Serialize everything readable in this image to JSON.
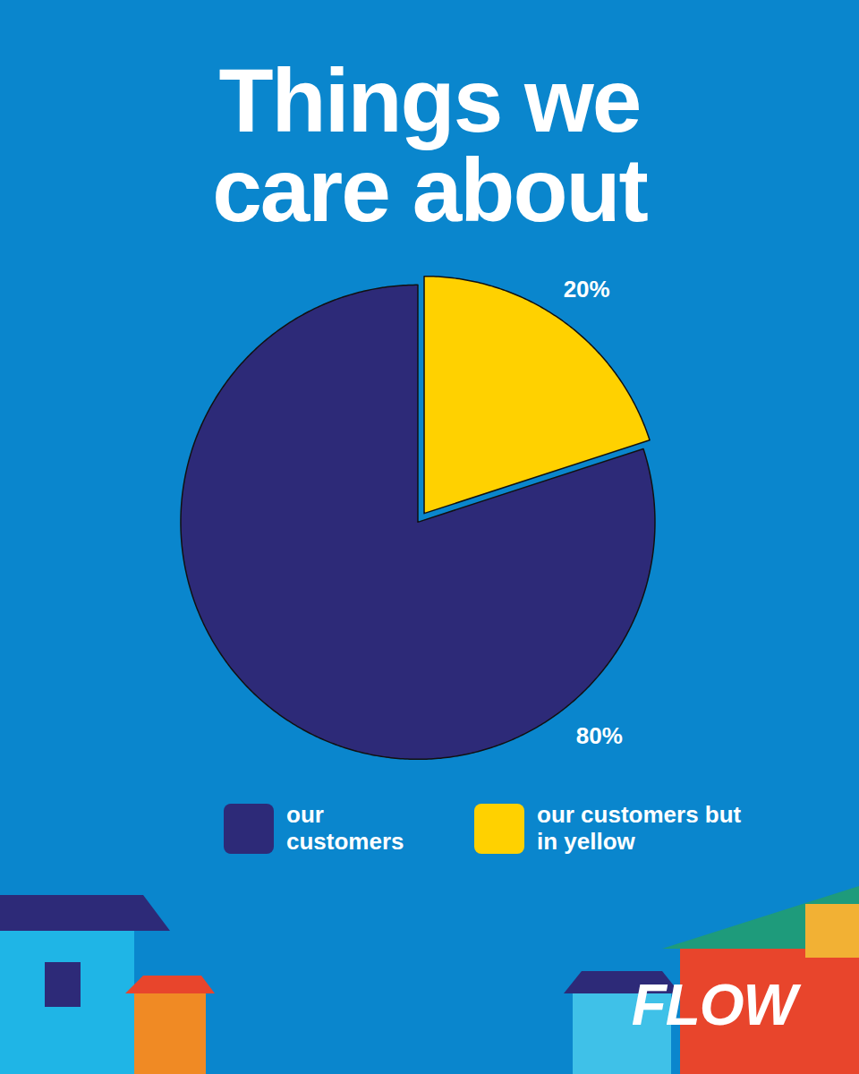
{
  "chart_data": {
    "type": "pie",
    "title": "Things we care about",
    "categories": [
      "our customers",
      "our customers but in yellow"
    ],
    "values": [
      80,
      20
    ],
    "value_labels": [
      "80%",
      "20%"
    ],
    "colors": [
      "#2d2a78",
      "#ffd100"
    ],
    "data_labels": true,
    "legend": "bottom"
  },
  "logo": "FLOW"
}
